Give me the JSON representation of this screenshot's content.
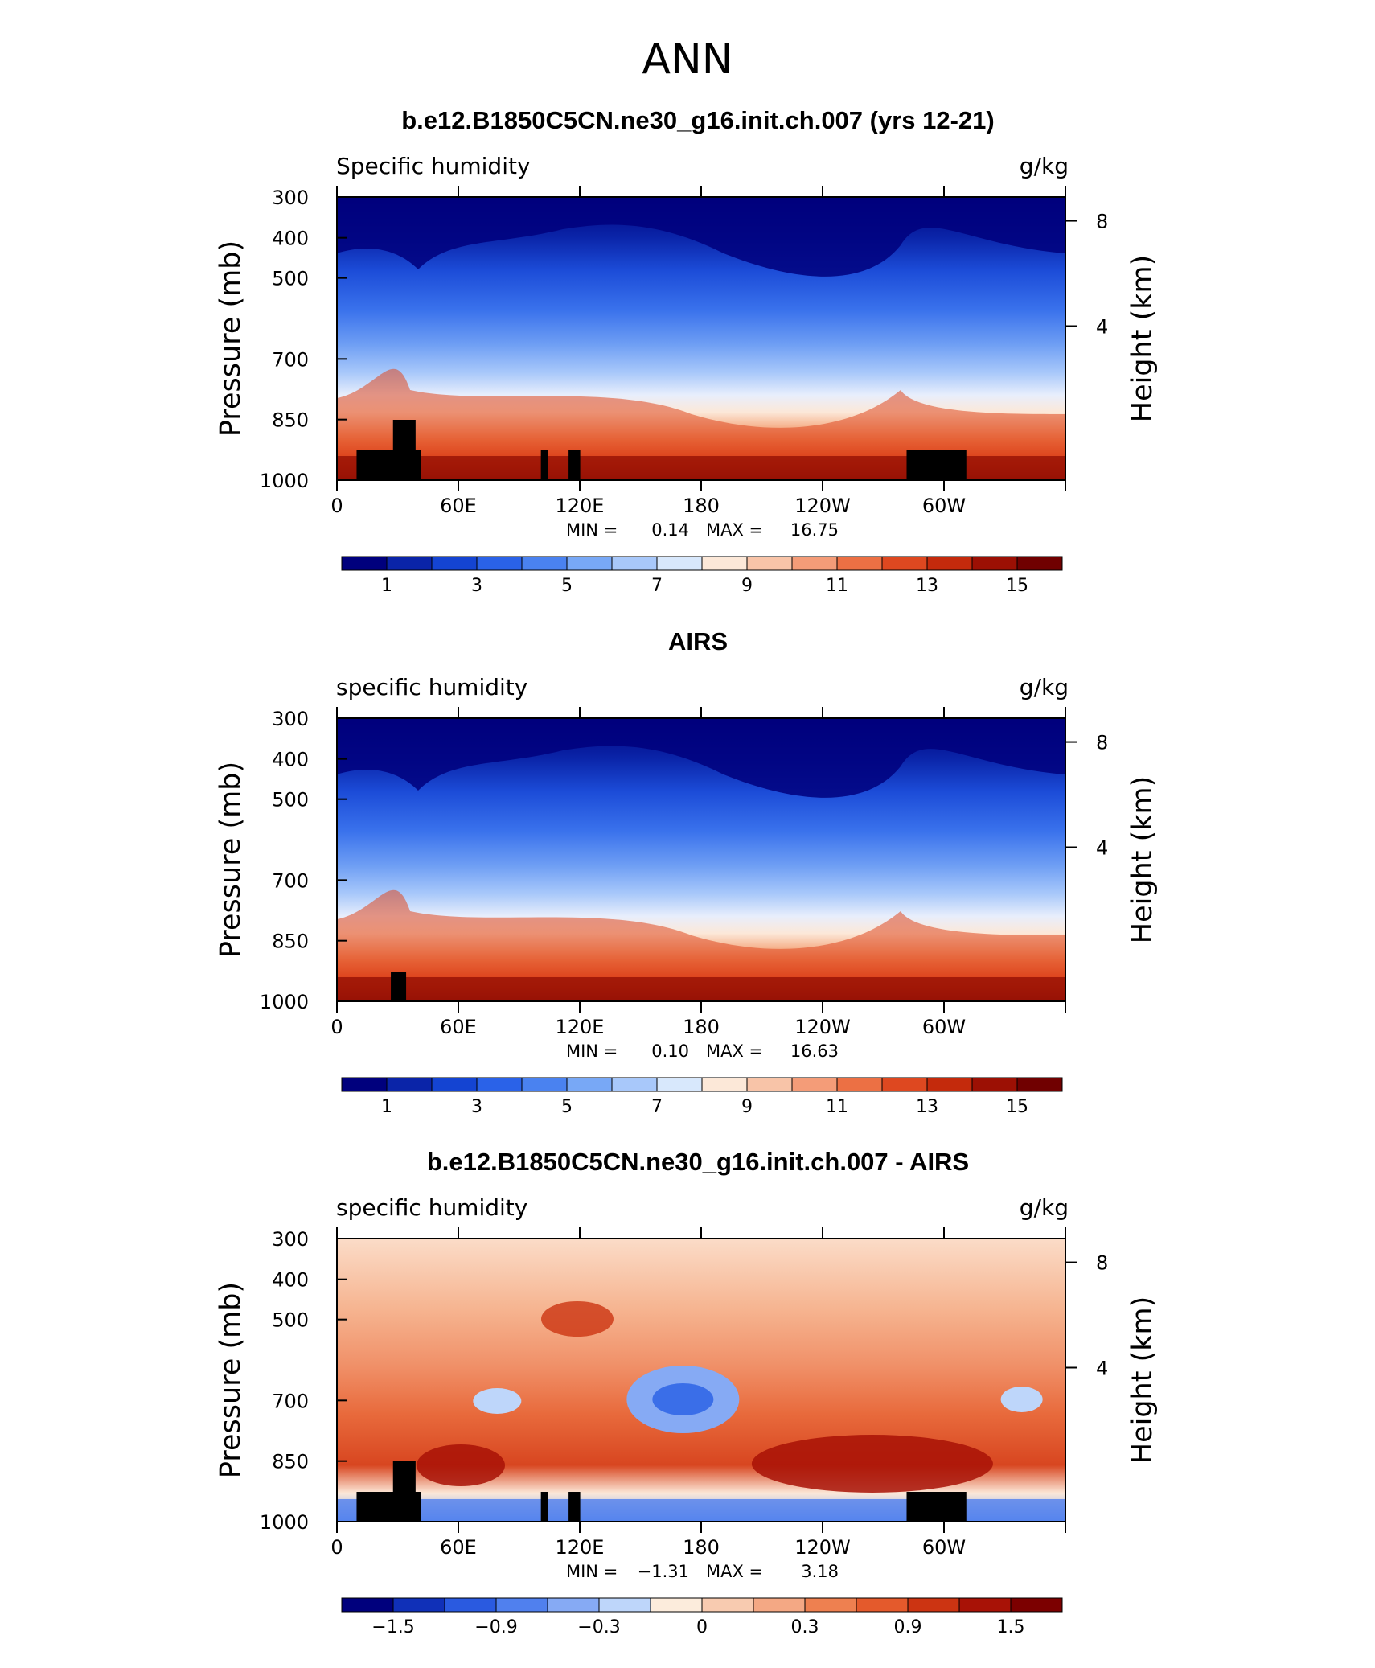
{
  "figure": {
    "title": "ANN"
  },
  "chart_data": [
    {
      "type": "contour",
      "title": "b.e12.B1850C5CN.ne30_g16.init.ch.007 (yrs 12-21)",
      "left_label": "Specific humidity",
      "units": "g/kg",
      "ylabel": "Pressure (mb)",
      "y2label": "Height (km)",
      "x_ticks": [
        "0",
        "60E",
        "120E",
        "180",
        "120W",
        "60W"
      ],
      "y_ticks": [
        "300",
        "400",
        "500",
        "700",
        "850",
        "1000"
      ],
      "y2_ticks": [
        "8",
        "4"
      ],
      "stats": {
        "min_label": "MIN =",
        "min": "0.14",
        "max_label": "MAX =",
        "max": "16.75"
      },
      "colorbar": {
        "labels": [
          "1",
          "3",
          "5",
          "7",
          "9",
          "11",
          "13",
          "15"
        ],
        "colors": [
          "#00007d",
          "#0a24a8",
          "#1444d2",
          "#2a62e8",
          "#4a82f0",
          "#78a8f6",
          "#a8c8fa",
          "#d8e8fc",
          "#fce8d8",
          "#f8c4a8",
          "#f49c78",
          "#ec7044",
          "#de4820",
          "#c42a0c",
          "#9c1004",
          "#700000"
        ]
      },
      "terrain": "model"
    },
    {
      "type": "contour",
      "title": "AIRS",
      "left_label": "specific humidity",
      "units": "g/kg",
      "ylabel": "Pressure (mb)",
      "y2label": "Height (km)",
      "x_ticks": [
        "0",
        "60E",
        "120E",
        "180",
        "120W",
        "60W"
      ],
      "y_ticks": [
        "300",
        "400",
        "500",
        "700",
        "850",
        "1000"
      ],
      "y2_ticks": [
        "8",
        "4"
      ],
      "stats": {
        "min_label": "MIN =",
        "min": "0.10",
        "max_label": "MAX =",
        "max": "16.63"
      },
      "colorbar": {
        "labels": [
          "1",
          "3",
          "5",
          "7",
          "9",
          "11",
          "13",
          "15"
        ],
        "colors": [
          "#00007d",
          "#0a24a8",
          "#1444d2",
          "#2a62e8",
          "#4a82f0",
          "#78a8f6",
          "#a8c8fa",
          "#d8e8fc",
          "#fce8d8",
          "#f8c4a8",
          "#f49c78",
          "#ec7044",
          "#de4820",
          "#c42a0c",
          "#9c1004",
          "#700000"
        ]
      },
      "terrain": "obs"
    },
    {
      "type": "contour",
      "title": "b.e12.B1850C5CN.ne30_g16.init.ch.007 - AIRS",
      "left_label": "specific humidity",
      "units": "g/kg",
      "ylabel": "Pressure (mb)",
      "y2label": "Height (km)",
      "x_ticks": [
        "0",
        "60E",
        "120E",
        "180",
        "120W",
        "60W"
      ],
      "y_ticks": [
        "300",
        "400",
        "500",
        "700",
        "850",
        "1000"
      ],
      "y2_ticks": [
        "8",
        "4"
      ],
      "stats": {
        "min_label": "MIN =",
        "min": "−1.31",
        "max_label": "MAX =",
        "max": "3.18"
      },
      "colorbar": {
        "labels": [
          "−1.5",
          "−0.9",
          "−0.3",
          "0",
          "0.3",
          "0.9",
          "1.5"
        ],
        "colors": [
          "#00007d",
          "#1030b8",
          "#2a5ae0",
          "#5080ee",
          "#86aaf4",
          "#bed6fa",
          "#fcecdc",
          "#f8cbb0",
          "#f4a884",
          "#ee8050",
          "#e45a2c",
          "#cc3412",
          "#a81206",
          "#7c0000"
        ]
      },
      "terrain": "model"
    }
  ]
}
